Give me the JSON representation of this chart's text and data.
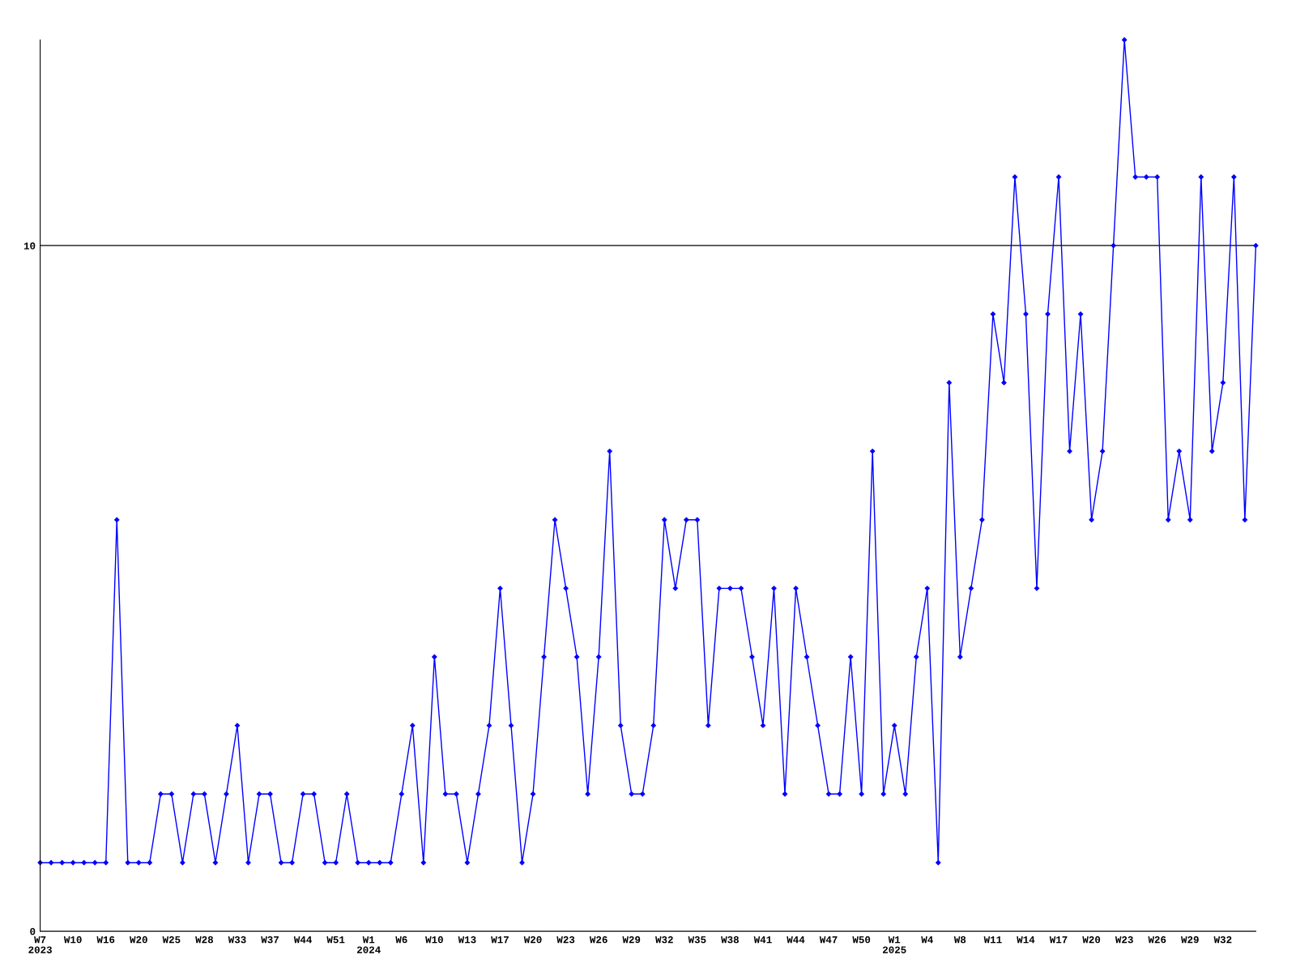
{
  "chart_data": {
    "type": "line",
    "categories": [
      "W7\n2023",
      null,
      null,
      "W10",
      null,
      null,
      "W16",
      null,
      null,
      "W20",
      null,
      null,
      "W25",
      null,
      null,
      "W28",
      null,
      null,
      "W33",
      null,
      null,
      "W37",
      null,
      null,
      "W44",
      null,
      null,
      "W51",
      null,
      null,
      "W1\n2024",
      null,
      null,
      "W6",
      null,
      null,
      "W10",
      null,
      null,
      "W13",
      null,
      null,
      "W17",
      null,
      null,
      "W20",
      null,
      null,
      "W23",
      null,
      null,
      "W26",
      null,
      null,
      "W29",
      null,
      null,
      "W32",
      null,
      null,
      "W35",
      null,
      null,
      "W38",
      null,
      null,
      "W41",
      null,
      null,
      "W44",
      null,
      null,
      "W47",
      null,
      null,
      "W50",
      null,
      null,
      "W1\n2025",
      null,
      null,
      "W4",
      null,
      null,
      "W8",
      null,
      null,
      "W11",
      null,
      null,
      "W14",
      null,
      null,
      "W17",
      null,
      null,
      "W20",
      null,
      null,
      "W23",
      null,
      null,
      "W26",
      null,
      null,
      "W29",
      null,
      null,
      "W32",
      null,
      null,
      null
    ],
    "series": [
      {
        "color": "#0000ff",
        "values": [
          1,
          1,
          1,
          1,
          1,
          1,
          1,
          6,
          1,
          1,
          1,
          2,
          2,
          1,
          2,
          2,
          1,
          2,
          3,
          1,
          2,
          2,
          1,
          1,
          2,
          2,
          1,
          1,
          2,
          1,
          1,
          1,
          1,
          2,
          3,
          1,
          4,
          2,
          2,
          1,
          2,
          3,
          5,
          3,
          1,
          2,
          4,
          6,
          5,
          4,
          2,
          4,
          7,
          3,
          2,
          2,
          3,
          6,
          5,
          6,
          6,
          3,
          5,
          5,
          5,
          4,
          3,
          5,
          2,
          5,
          4,
          3,
          2,
          2,
          4,
          2,
          7,
          2,
          3,
          2,
          4,
          5,
          1,
          8,
          4,
          5,
          6,
          9,
          8,
          11,
          9,
          5,
          9,
          11,
          7,
          9,
          6,
          7,
          10,
          13,
          11,
          11,
          11,
          6,
          7,
          6,
          11,
          7,
          8,
          11,
          6,
          10
        ]
      }
    ],
    "ylim": [
      0,
      13
    ],
    "yticks": [
      0,
      10
    ],
    "grid": "y",
    "marker": "diamond",
    "line_style": "solid",
    "legend": false
  }
}
